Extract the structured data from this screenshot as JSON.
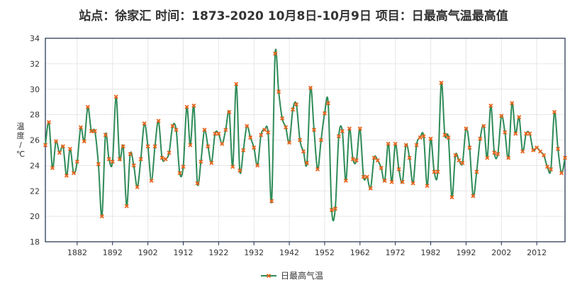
{
  "title": "站点：徐家汇 时间：1873-2020  10月8日-10月9日 项目：日最高气温最高值",
  "colors": {
    "line": "#2e8b57",
    "marker": "#e8641c",
    "grid": "#e6e6e6",
    "axis": "#1a2a4a"
  },
  "chart_data": {
    "type": "line",
    "title": "站点：徐家汇 时间：1873-2020  10月8日-10月9日 项目：日最高气温最高值",
    "ylabel": "温度 / ℃",
    "xlabel": "",
    "ylim": [
      18,
      34
    ],
    "yticks": [
      18,
      20,
      22,
      24,
      26,
      28,
      30,
      32,
      34
    ],
    "xlim": [
      1873,
      2020
    ],
    "xticks": [
      1882,
      1892,
      1902,
      1912,
      1922,
      1932,
      1942,
      1952,
      1962,
      1972,
      1982,
      1992,
      2002,
      2012
    ],
    "grid": true,
    "legend_position": "bottom",
    "series": [
      {
        "name": "日最高气温",
        "x": [
          1873,
          1874,
          1875,
          1876,
          1877,
          1878,
          1879,
          1880,
          1881,
          1882,
          1883,
          1884,
          1885,
          1886,
          1887,
          1888,
          1889,
          1890,
          1891,
          1892,
          1893,
          1894,
          1895,
          1896,
          1897,
          1898,
          1899,
          1900,
          1901,
          1902,
          1903,
          1904,
          1905,
          1906,
          1907,
          1908,
          1909,
          1910,
          1911,
          1912,
          1913,
          1914,
          1915,
          1916,
          1917,
          1918,
          1919,
          1920,
          1921,
          1922,
          1923,
          1924,
          1925,
          1926,
          1927,
          1928,
          1929,
          1930,
          1931,
          1932,
          1933,
          1934,
          1935,
          1936,
          1937,
          1938,
          1939,
          1940,
          1941,
          1942,
          1943,
          1944,
          1945,
          1946,
          1947,
          1948,
          1949,
          1950,
          1951,
          1952,
          1953,
          1954,
          1955,
          1956,
          1957,
          1958,
          1959,
          1960,
          1961,
          1962,
          1963,
          1964,
          1965,
          1966,
          1967,
          1968,
          1969,
          1970,
          1971,
          1972,
          1973,
          1974,
          1975,
          1976,
          1977,
          1978,
          1979,
          1980,
          1981,
          1982,
          1983,
          1984,
          1985,
          1986,
          1987,
          1988,
          1989,
          1990,
          1991,
          1992,
          1993,
          1994,
          1995,
          1996,
          1997,
          1998,
          1999,
          2000,
          2001,
          2002,
          2003,
          2004,
          2005,
          2006,
          2007,
          2008,
          2009,
          2010,
          2011,
          2012,
          2013,
          2014,
          2015,
          2016,
          2017,
          2018,
          2019,
          2020
        ],
        "values": [
          25.6,
          27.4,
          23.8,
          25.9,
          25.0,
          25.5,
          23.2,
          25.3,
          23.4,
          24.3,
          27.0,
          25.9,
          28.6,
          26.7,
          26.7,
          24.1,
          20.0,
          26.4,
          24.5,
          24.3,
          29.4,
          24.5,
          25.5,
          20.8,
          24.9,
          24.0,
          22.3,
          24.5,
          27.3,
          25.5,
          22.8,
          25.5,
          27.5,
          24.6,
          24.5,
          25.0,
          27.1,
          26.8,
          23.4,
          23.9,
          28.6,
          25.6,
          28.7,
          22.6,
          24.3,
          26.8,
          25.5,
          24.2,
          26.5,
          26.5,
          25.7,
          26.8,
          28.2,
          23.9,
          30.4,
          23.6,
          25.2,
          27.1,
          26.2,
          25.4,
          24.0,
          26.4,
          26.8,
          26.6,
          21.2,
          32.8,
          29.8,
          27.7,
          27.0,
          25.8,
          28.4,
          28.8,
          26.0,
          25.1,
          24.2,
          30.1,
          26.8,
          23.7,
          26.0,
          28.1,
          28.9,
          20.5,
          20.6,
          26.3,
          26.7,
          22.8,
          26.9,
          24.5,
          24.4,
          26.9,
          23.1,
          23.1,
          22.2,
          24.6,
          24.4,
          23.8,
          22.8,
          25.7,
          22.7,
          25.7,
          23.7,
          22.7,
          25.6,
          24.6,
          22.6,
          25.6,
          26.2,
          26.3,
          22.4,
          26.1,
          23.5,
          23.5,
          30.5,
          26.4,
          26.2,
          21.5,
          24.8,
          24.4,
          24.2,
          26.9,
          25.4,
          21.6,
          23.5,
          26.1,
          27.1,
          24.6,
          28.7,
          25.0,
          24.9,
          27.9,
          26.6,
          24.6,
          28.9,
          26.5,
          27.8,
          25.1,
          26.5,
          26.5,
          25.2,
          25.4,
          25.1,
          24.8,
          23.9,
          23.7,
          28.2,
          25.3,
          23.4,
          24.6
        ]
      }
    ]
  }
}
